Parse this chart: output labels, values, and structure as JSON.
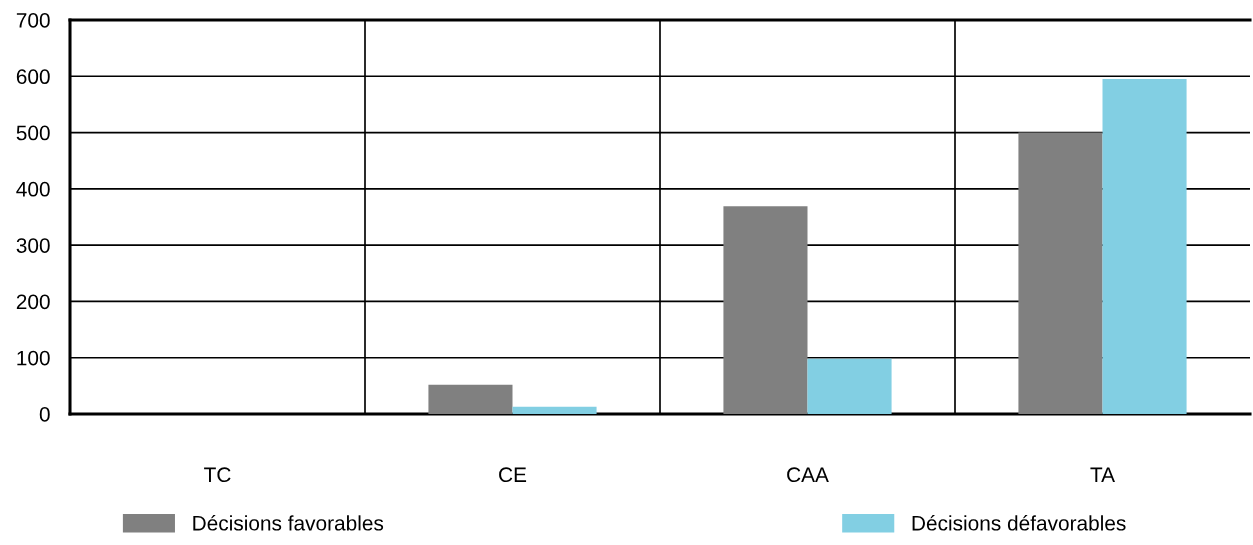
{
  "chart_data": {
    "type": "bar",
    "categories": [
      "TC",
      "CE",
      "CAA",
      "TA"
    ],
    "series": [
      {
        "name": "Décisions favorables",
        "color": "#808080",
        "values": [
          0,
          52,
          369,
          500
        ]
      },
      {
        "name": "Décisions défavorables",
        "color": "#82cfe3",
        "values": [
          0,
          13,
          98,
          595
        ]
      }
    ],
    "ylim": [
      0,
      700
    ],
    "yticks": [
      0,
      100,
      200,
      300,
      400,
      500,
      600,
      700
    ],
    "grid": true,
    "legend": "bottom"
  }
}
